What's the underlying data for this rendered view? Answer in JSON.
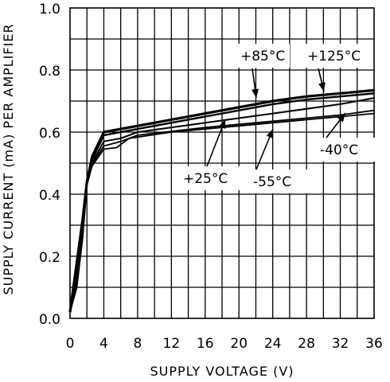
{
  "chart_data": {
    "type": "line",
    "title": "",
    "xlabel": "SUPPLY VOLTAGE (V)",
    "ylabel": "SUPPLY CURRENT (mA) PER AMPLIFIER",
    "xlim": [
      0,
      36
    ],
    "ylim": [
      0,
      1.0
    ],
    "xticks": [
      0,
      4,
      8,
      12,
      16,
      20,
      24,
      28,
      32,
      36
    ],
    "yticks": [
      0.0,
      0.2,
      0.4,
      0.6,
      0.8,
      1.0
    ],
    "xtick_labels": [
      "0",
      "4",
      "8",
      "12",
      "16",
      "20",
      "24",
      "28",
      "32",
      "36"
    ],
    "ytick_labels": [
      "0.0",
      "0.2",
      "0.4",
      "0.6",
      "0.8",
      "1.0"
    ],
    "grid": true,
    "legend": "none",
    "series": [
      {
        "name": "+125°C",
        "x": [
          0,
          0.8,
          1.5,
          2,
          2.6,
          4,
          8,
          16,
          24,
          28,
          32,
          36
        ],
        "y": [
          0.02,
          0.18,
          0.32,
          0.44,
          0.52,
          0.6,
          0.62,
          0.66,
          0.7,
          0.715,
          0.725,
          0.735
        ]
      },
      {
        "name": "+85°C",
        "x": [
          0,
          0.8,
          1.5,
          2,
          2.6,
          4,
          8,
          16,
          24,
          28,
          32,
          36
        ],
        "y": [
          0.02,
          0.17,
          0.31,
          0.44,
          0.51,
          0.59,
          0.61,
          0.65,
          0.69,
          0.705,
          0.715,
          0.725
        ]
      },
      {
        "name": "+25°C",
        "x": [
          0,
          0.8,
          1.5,
          2,
          2.6,
          4,
          6,
          8,
          16,
          24,
          32,
          36
        ],
        "y": [
          0.02,
          0.15,
          0.29,
          0.44,
          0.5,
          0.57,
          0.58,
          0.6,
          0.63,
          0.66,
          0.69,
          0.71
        ]
      },
      {
        "name": "-40°C",
        "x": [
          0,
          0.8,
          1.5,
          2,
          2.6,
          4,
          5.5,
          7,
          12,
          20,
          28,
          36
        ],
        "y": [
          0.02,
          0.1,
          0.26,
          0.43,
          0.49,
          0.545,
          0.55,
          0.58,
          0.6,
          0.62,
          0.64,
          0.66
        ]
      },
      {
        "name": "-55°C",
        "x": [
          0,
          0.8,
          1.5,
          2,
          2.6,
          4,
          6,
          8,
          16,
          24,
          32,
          36
        ],
        "y": [
          0.02,
          0.12,
          0.27,
          0.43,
          0.495,
          0.555,
          0.57,
          0.59,
          0.615,
          0.635,
          0.655,
          0.67
        ]
      }
    ],
    "annotations": [
      {
        "text": "+85°C",
        "series": "+85°C"
      },
      {
        "text": "+125°C",
        "series": "+125°C"
      },
      {
        "text": "+25°C",
        "series": "+25°C"
      },
      {
        "text": "-55°C",
        "series": "-55°C"
      },
      {
        "text": "-40°C",
        "series": "-40°C"
      }
    ]
  }
}
